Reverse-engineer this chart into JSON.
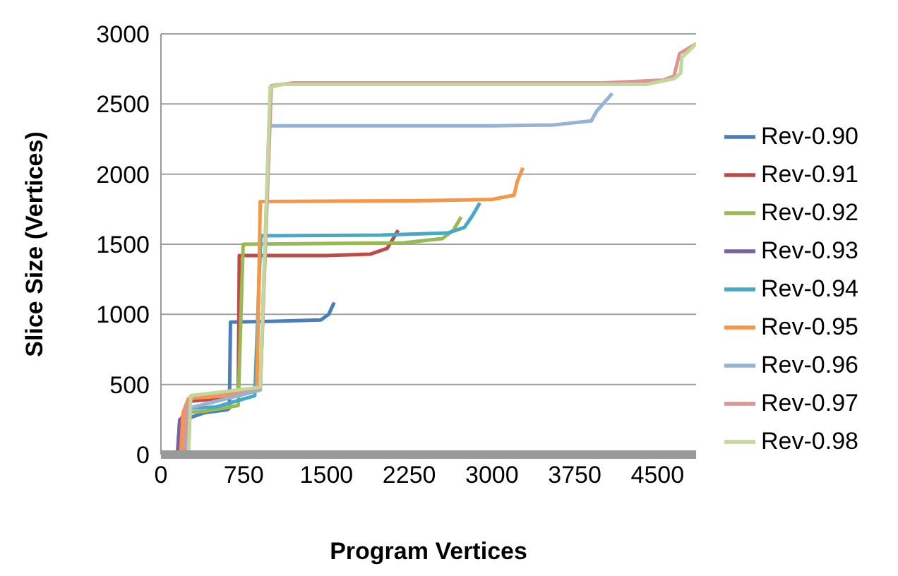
{
  "chart_data": {
    "type": "line",
    "xlabel": "Program Vertices",
    "ylabel": "Slice Size (Vertices)",
    "xlim": [
      0,
      4850
    ],
    "xticks": [
      0,
      750,
      1500,
      2250,
      3000,
      3750,
      4500
    ],
    "ylim": [
      0,
      3000
    ],
    "yticks": [
      0,
      500,
      1000,
      1500,
      2000,
      2500,
      3000
    ],
    "grid": "y",
    "legend": "right",
    "series": [
      {
        "name": "Rev-0.90",
        "color": "#4a7ebb",
        "x": [
          0,
          150,
          170,
          250,
          400,
          600,
          620,
          630,
          1000,
          1450,
          1520,
          1570
        ],
        "values": [
          0,
          0,
          250,
          260,
          300,
          320,
          330,
          945,
          950,
          960,
          1000,
          1085
        ]
      },
      {
        "name": "Rev-0.91",
        "color": "#be4b48",
        "x": [
          0,
          180,
          200,
          250,
          400,
          700,
          710,
          1500,
          1900,
          2050,
          2150
        ],
        "values": [
          0,
          0,
          280,
          380,
          390,
          420,
          1420,
          1420,
          1430,
          1470,
          1600
        ]
      },
      {
        "name": "Rev-0.92",
        "color": "#98b954",
        "x": [
          0,
          200,
          230,
          400,
          700,
          745,
          2200,
          2550,
          2650,
          2720
        ],
        "values": [
          0,
          0,
          300,
          310,
          350,
          1500,
          1510,
          1540,
          1600,
          1695
        ]
      },
      {
        "name": "Rev-0.93",
        "color": "#7d60a0",
        "x": [
          0,
          150,
          170,
          220
        ],
        "values": [
          0,
          0,
          240,
          300
        ]
      },
      {
        "name": "Rev-0.94",
        "color": "#46aac5",
        "x": [
          0,
          220,
          240,
          500,
          850,
          905,
          2000,
          2600,
          2750,
          2820,
          2890
        ],
        "values": [
          0,
          0,
          330,
          340,
          420,
          1560,
          1565,
          1580,
          1620,
          1700,
          1795
        ]
      },
      {
        "name": "Rev-0.95",
        "color": "#f79646",
        "x": [
          0,
          180,
          200,
          250,
          600,
          870,
          900,
          2300,
          3000,
          3200,
          3230,
          3280
        ],
        "values": [
          0,
          0,
          300,
          400,
          420,
          480,
          1805,
          1810,
          1820,
          1850,
          1950,
          2045
        ]
      },
      {
        "name": "Rev-0.96",
        "color": "#95b3d7",
        "x": [
          0,
          230,
          250,
          500,
          900,
          980,
          3000,
          3550,
          3900,
          3950,
          4050,
          4090
        ],
        "values": [
          0,
          0,
          330,
          380,
          460,
          2345,
          2345,
          2350,
          2380,
          2450,
          2540,
          2575
        ]
      },
      {
        "name": "Rev-0.97",
        "color": "#d99694",
        "x": [
          0,
          210,
          230,
          300,
          900,
          1000,
          1200,
          4000,
          4550,
          4650,
          4700,
          4850
        ],
        "values": [
          0,
          0,
          350,
          420,
          470,
          2630,
          2650,
          2650,
          2670,
          2700,
          2860,
          2930
        ]
      },
      {
        "name": "Rev-0.98",
        "color": "#c3d69b",
        "x": [
          0,
          250,
          270,
          900,
          990,
          1100,
          4400,
          4650,
          4710,
          4720,
          4850
        ],
        "values": [
          0,
          0,
          420,
          480,
          2620,
          2640,
          2640,
          2680,
          2720,
          2830,
          2930
        ]
      }
    ]
  }
}
